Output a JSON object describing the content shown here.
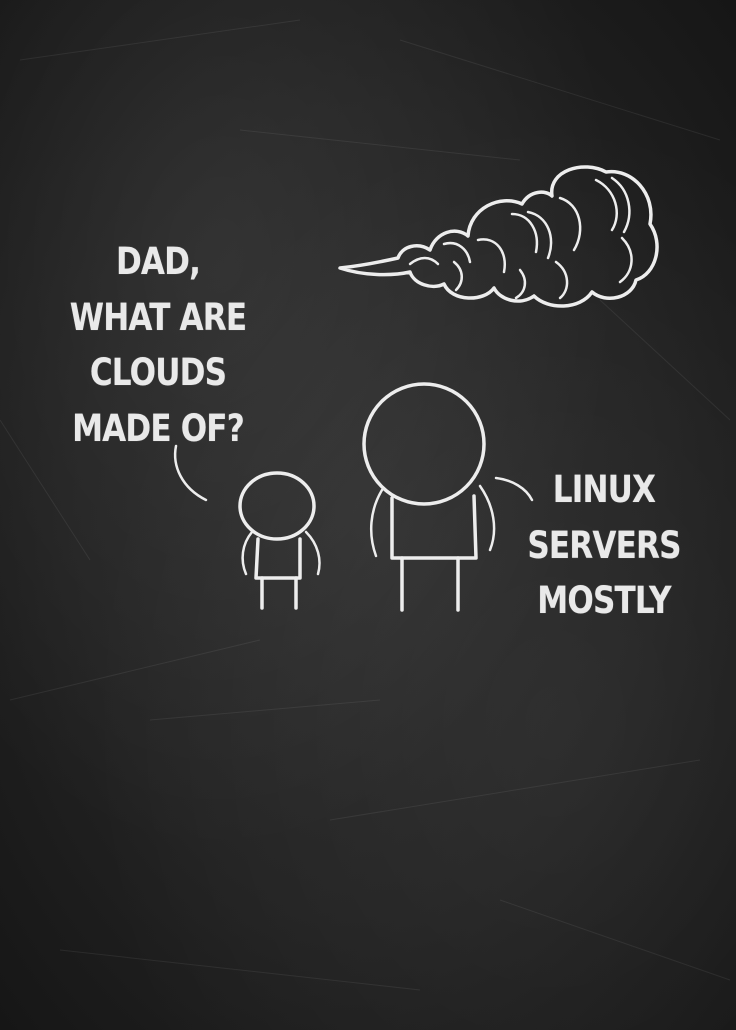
{
  "child_speech": {
    "lines": [
      "DAD,",
      "WHAT ARE",
      "CLOUDS",
      "MADE OF?"
    ]
  },
  "dad_speech": {
    "lines": [
      "LINUX",
      "SERVERS",
      "MOSTLY"
    ]
  },
  "colors": {
    "background": "#222222",
    "chalk": "#ededed"
  },
  "icons": [
    "cloud-icon",
    "child-figure",
    "dad-figure"
  ]
}
